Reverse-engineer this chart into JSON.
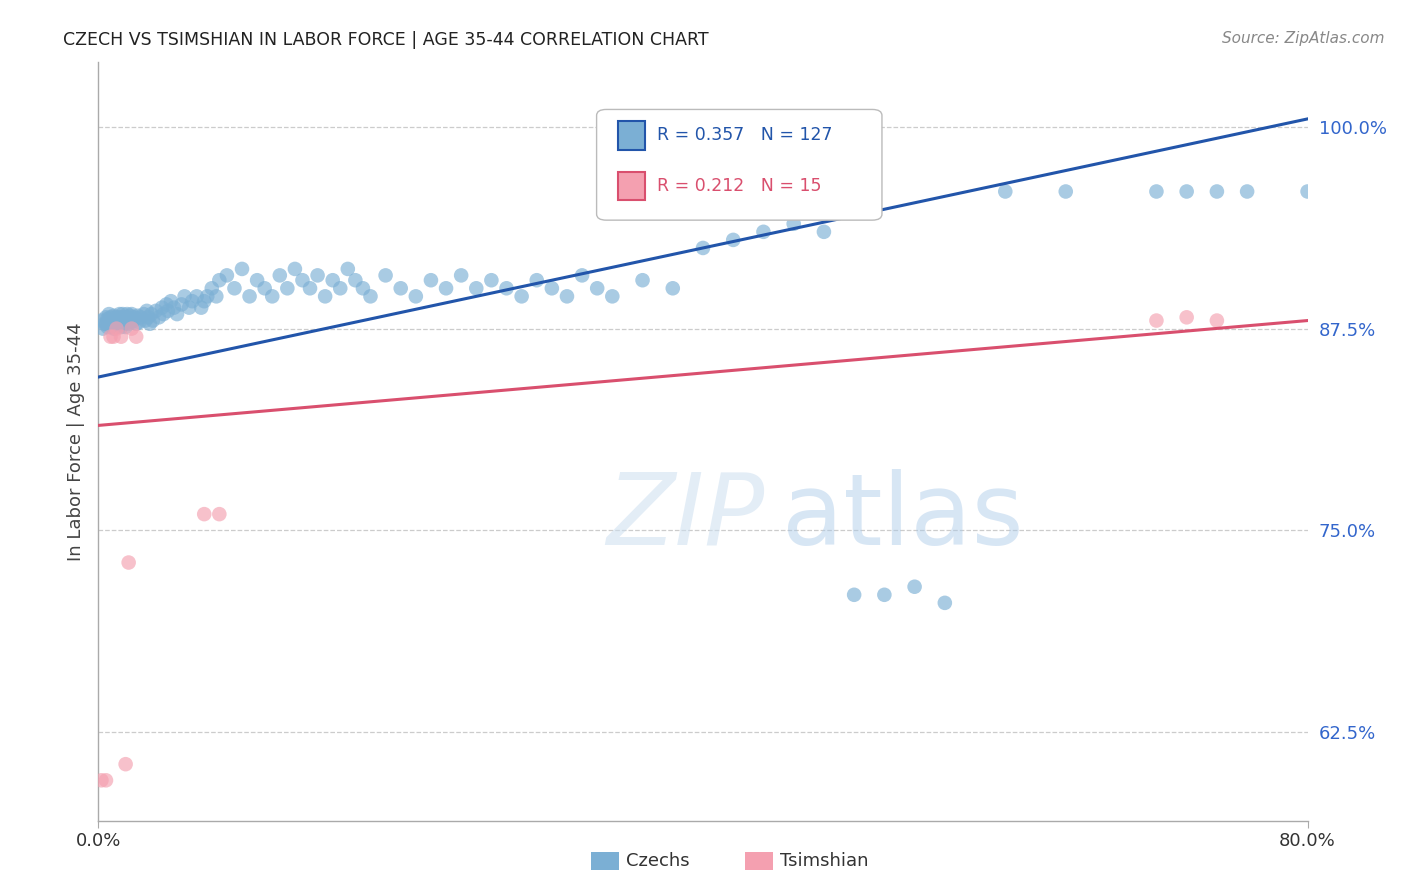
{
  "title": "CZECH VS TSIMSHIAN IN LABOR FORCE | AGE 35-44 CORRELATION CHART",
  "source": "Source: ZipAtlas.com",
  "ylabel": "In Labor Force | Age 35-44",
  "xlim": [
    0.0,
    0.8
  ],
  "ylim": [
    0.57,
    1.04
  ],
  "yticks": [
    0.625,
    0.75,
    0.875,
    1.0
  ],
  "ytick_labels": [
    "62.5%",
    "75.0%",
    "87.5%",
    "100.0%"
  ],
  "czechs_R": 0.357,
  "czechs_N": 127,
  "tsimshian_R": 0.212,
  "tsimshian_N": 15,
  "czechs_color": "#7bafd4",
  "tsimshian_color": "#f4a0b0",
  "line_czechs_color": "#2255aa",
  "line_tsimshian_color": "#d94f6e",
  "cz_line_x0": 0.0,
  "cz_line_y0": 0.845,
  "cz_line_x1": 0.8,
  "cz_line_y1": 1.005,
  "ts_line_x0": 0.0,
  "ts_line_y0": 0.815,
  "ts_line_x1": 0.8,
  "ts_line_y1": 0.88,
  "czechs_x": [
    0.002,
    0.003,
    0.004,
    0.005,
    0.005,
    0.006,
    0.006,
    0.007,
    0.007,
    0.008,
    0.008,
    0.009,
    0.009,
    0.01,
    0.01,
    0.01,
    0.011,
    0.011,
    0.012,
    0.012,
    0.013,
    0.013,
    0.014,
    0.014,
    0.015,
    0.015,
    0.016,
    0.016,
    0.017,
    0.017,
    0.018,
    0.018,
    0.019,
    0.019,
    0.02,
    0.02,
    0.021,
    0.022,
    0.022,
    0.023,
    0.024,
    0.025,
    0.026,
    0.027,
    0.028,
    0.03,
    0.031,
    0.032,
    0.033,
    0.034,
    0.035,
    0.036,
    0.038,
    0.04,
    0.042,
    0.043,
    0.045,
    0.046,
    0.048,
    0.05,
    0.052,
    0.055,
    0.057,
    0.06,
    0.062,
    0.065,
    0.068,
    0.07,
    0.072,
    0.075,
    0.078,
    0.08,
    0.085,
    0.09,
    0.095,
    0.1,
    0.105,
    0.11,
    0.115,
    0.12,
    0.125,
    0.13,
    0.135,
    0.14,
    0.145,
    0.15,
    0.155,
    0.16,
    0.165,
    0.17,
    0.175,
    0.18,
    0.19,
    0.2,
    0.21,
    0.22,
    0.23,
    0.24,
    0.25,
    0.26,
    0.27,
    0.28,
    0.29,
    0.3,
    0.31,
    0.32,
    0.33,
    0.34,
    0.36,
    0.38,
    0.4,
    0.42,
    0.44,
    0.46,
    0.48,
    0.5,
    0.52,
    0.54,
    0.56,
    0.6,
    0.64,
    0.7,
    0.72,
    0.74,
    0.76,
    0.8
  ],
  "czechs_y": [
    0.88,
    0.875,
    0.878,
    0.882,
    0.878,
    0.876,
    0.881,
    0.879,
    0.884,
    0.877,
    0.882,
    0.88,
    0.876,
    0.883,
    0.879,
    0.875,
    0.882,
    0.878,
    0.88,
    0.876,
    0.882,
    0.878,
    0.884,
    0.879,
    0.882,
    0.876,
    0.88,
    0.884,
    0.878,
    0.882,
    0.876,
    0.88,
    0.884,
    0.88,
    0.882,
    0.878,
    0.883,
    0.879,
    0.884,
    0.88,
    0.882,
    0.878,
    0.883,
    0.879,
    0.882,
    0.884,
    0.88,
    0.886,
    0.882,
    0.878,
    0.884,
    0.88,
    0.886,
    0.882,
    0.888,
    0.884,
    0.89,
    0.886,
    0.892,
    0.888,
    0.884,
    0.89,
    0.895,
    0.888,
    0.892,
    0.895,
    0.888,
    0.892,
    0.895,
    0.9,
    0.895,
    0.905,
    0.908,
    0.9,
    0.912,
    0.895,
    0.905,
    0.9,
    0.895,
    0.908,
    0.9,
    0.912,
    0.905,
    0.9,
    0.908,
    0.895,
    0.905,
    0.9,
    0.912,
    0.905,
    0.9,
    0.895,
    0.908,
    0.9,
    0.895,
    0.905,
    0.9,
    0.908,
    0.9,
    0.905,
    0.9,
    0.895,
    0.905,
    0.9,
    0.895,
    0.908,
    0.9,
    0.895,
    0.905,
    0.9,
    0.925,
    0.93,
    0.935,
    0.94,
    0.935,
    0.71,
    0.71,
    0.715,
    0.705,
    0.96,
    0.96,
    0.96,
    0.96,
    0.96,
    0.96,
    0.96
  ],
  "tsimshian_x": [
    0.002,
    0.005,
    0.008,
    0.01,
    0.012,
    0.015,
    0.018,
    0.02,
    0.022,
    0.025,
    0.07,
    0.08,
    0.7,
    0.72,
    0.74
  ],
  "tsimshian_y": [
    0.595,
    0.595,
    0.87,
    0.87,
    0.875,
    0.87,
    0.605,
    0.73,
    0.875,
    0.87,
    0.76,
    0.76,
    0.88,
    0.882,
    0.88
  ]
}
